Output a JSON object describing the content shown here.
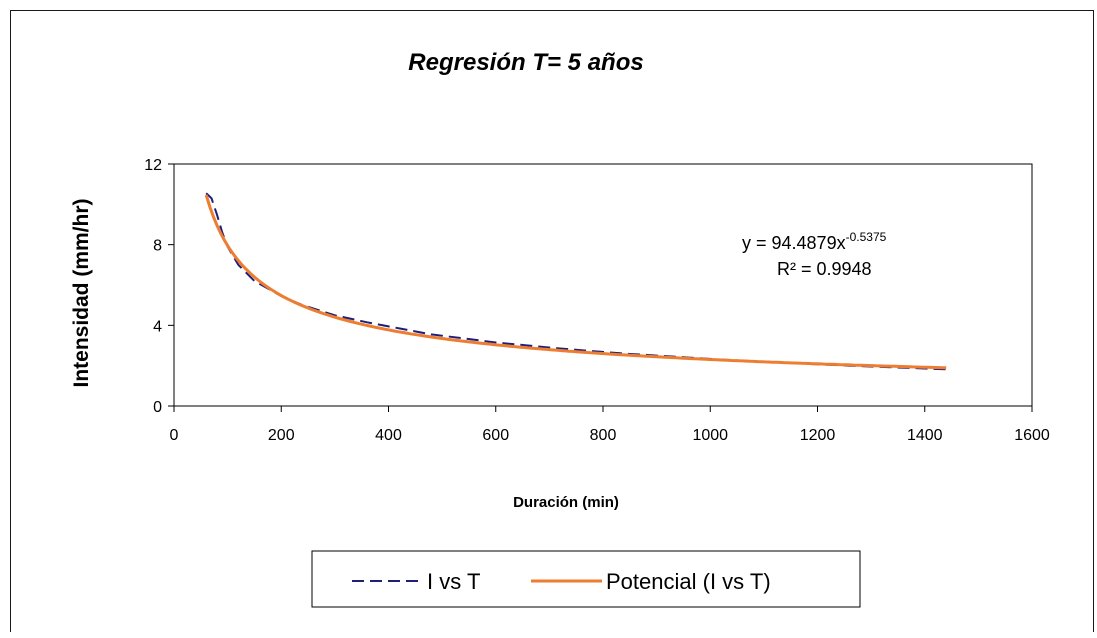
{
  "chart_data": {
    "type": "line",
    "title": "Regresión T= 5 años",
    "xlabel": "Duración (min)",
    "ylabel": "Intensidad (mm/hr)",
    "xlim": [
      0,
      1600
    ],
    "ylim": [
      0,
      12
    ],
    "x_ticks": [
      "0",
      "200",
      "400",
      "600",
      "800",
      "1000",
      "1200",
      "1400",
      "1600"
    ],
    "y_ticks": [
      "0",
      "4",
      "8",
      "12"
    ],
    "grid": false,
    "legend_position": "bottom",
    "series": [
      {
        "name": "I vs T",
        "style": "dashed",
        "color": "#1f1f7a",
        "x": [
          60,
          70,
          80,
          90,
          100,
          120,
          150,
          180,
          200,
          240,
          300,
          360,
          420,
          480,
          540,
          600,
          660,
          720,
          780,
          840,
          900,
          960,
          1020,
          1080,
          1140,
          1200,
          1260,
          1320,
          1380,
          1440
        ],
        "y": [
          10.55,
          10.3,
          9.5,
          8.6,
          7.9,
          7.0,
          6.2,
          5.75,
          5.45,
          5.0,
          4.5,
          4.15,
          3.85,
          3.55,
          3.35,
          3.15,
          3.0,
          2.85,
          2.72,
          2.6,
          2.5,
          2.4,
          2.3,
          2.22,
          2.14,
          2.07,
          2.0,
          1.94,
          1.88,
          1.82
        ]
      },
      {
        "name": "Potencial (I vs T)",
        "style": "solid",
        "color": "#ed7d31",
        "equation": {
          "a": 94.4879,
          "b": -0.5375
        }
      }
    ],
    "annotations": {
      "equation_prefix": "y = 94.4879x",
      "equation_exponent": "-0.5375",
      "r_squared": "R² = 0.9948"
    }
  }
}
